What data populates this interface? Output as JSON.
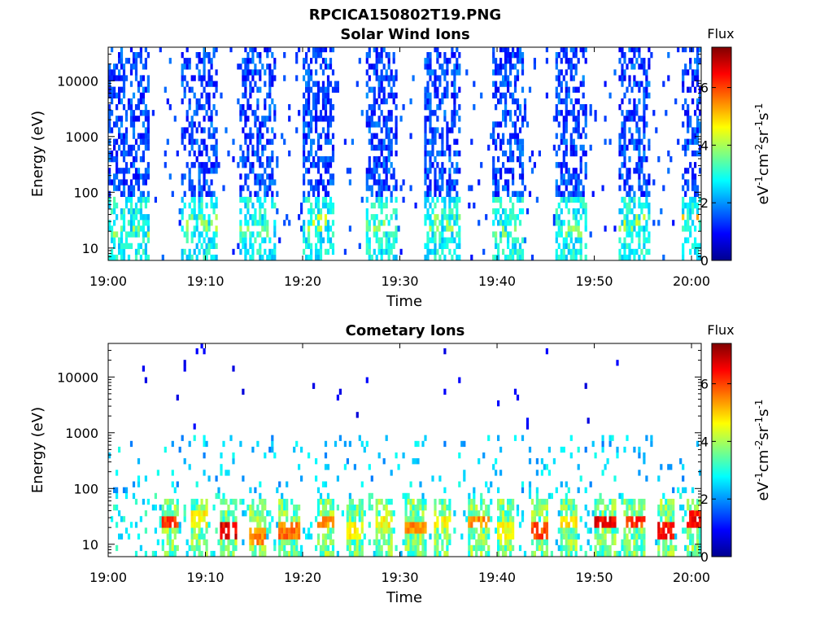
{
  "figure": {
    "title": "RPCICA150802T19.PNG"
  },
  "chart_data": [
    {
      "type": "heatmap",
      "title": "Solar Wind Ions",
      "xlabel": "Time",
      "ylabel": "Energy (eV)",
      "x_ticks": [
        "19:00",
        "19:10",
        "19:20",
        "19:30",
        "19:40",
        "19:50",
        "20:00"
      ],
      "xlim": [
        "19:00",
        "20:01"
      ],
      "y_scale": "log",
      "y_ticks": [
        10,
        100,
        1000,
        10000
      ],
      "y_tick_labels": [
        "10",
        "100",
        "1000",
        "10000"
      ],
      "ylim": [
        6,
        40000
      ],
      "colorbar": {
        "title": "Flux",
        "label": "eV-1cm-2sr-1s-1",
        "range": [
          0,
          7.4
        ],
        "ticks": [
          0,
          2,
          4,
          6
        ],
        "colormap": "jet"
      },
      "bursts": [
        {
          "start": "19:00.0",
          "end": "19:04.0",
          "peak_flux": 4.2,
          "peak_energy_eV": 20
        },
        {
          "start": "19:07.5",
          "end": "19:11.0",
          "peak_flux": 4.3,
          "peak_energy_eV": 28
        },
        {
          "start": "19:13.5",
          "end": "19:17.0",
          "peak_flux": 4.0,
          "peak_energy_eV": 20
        },
        {
          "start": "19:20.0",
          "end": "19:23.0",
          "peak_flux": 4.6,
          "peak_energy_eV": 28
        },
        {
          "start": "19:26.5",
          "end": "19:29.5",
          "peak_flux": 4.2,
          "peak_energy_eV": 25
        },
        {
          "start": "19:32.5",
          "end": "19:36.0",
          "peak_flux": 4.2,
          "peak_energy_eV": 28
        },
        {
          "start": "19:39.5",
          "end": "19:42.5",
          "peak_flux": 4.0,
          "peak_energy_eV": 20
        },
        {
          "start": "19:46.0",
          "end": "19:49.0",
          "peak_flux": 4.2,
          "peak_energy_eV": 20
        },
        {
          "start": "19:52.5",
          "end": "19:55.5",
          "peak_flux": 4.6,
          "peak_energy_eV": 28
        },
        {
          "start": "19:59.0",
          "end": "20:01.0",
          "peak_flux": 5.6,
          "peak_energy_eV": 30
        }
      ]
    },
    {
      "type": "heatmap",
      "title": "Cometary Ions",
      "xlabel": "Time",
      "ylabel": "Energy (eV)",
      "x_ticks": [
        "19:00",
        "19:10",
        "19:20",
        "19:30",
        "19:40",
        "19:50",
        "20:00"
      ],
      "xlim": [
        "19:00",
        "20:01"
      ],
      "y_scale": "log",
      "y_ticks": [
        10,
        100,
        1000,
        10000
      ],
      "y_tick_labels": [
        "10",
        "100",
        "1000",
        "10000"
      ],
      "ylim": [
        6,
        40000
      ],
      "colorbar": {
        "title": "Flux",
        "label": "eV-1cm-2sr-1s-1",
        "range": [
          0,
          7.4
        ],
        "ticks": [
          0,
          2,
          4,
          6
        ],
        "colormap": "jet"
      },
      "bursts": [
        {
          "start": "19:05.5",
          "end": "19:07.0",
          "peak_flux": 6.5,
          "peak_energy_eV": 25
        },
        {
          "start": "19:08.5",
          "end": "19:10.0",
          "peak_flux": 5.0,
          "peak_energy_eV": 30
        },
        {
          "start": "19:11.5",
          "end": "19:13.0",
          "peak_flux": 7.0,
          "peak_energy_eV": 16
        },
        {
          "start": "19:14.5",
          "end": "19:16.0",
          "peak_flux": 5.8,
          "peak_energy_eV": 14
        },
        {
          "start": "19:17.5",
          "end": "19:19.5",
          "peak_flux": 6.0,
          "peak_energy_eV": 16
        },
        {
          "start": "19:21.5",
          "end": "19:23.0",
          "peak_flux": 5.8,
          "peak_energy_eV": 25
        },
        {
          "start": "19:24.5",
          "end": "19:26.0",
          "peak_flux": 5.0,
          "peak_energy_eV": 16
        },
        {
          "start": "19:27.5",
          "end": "19:29.0",
          "peak_flux": 5.0,
          "peak_energy_eV": 25
        },
        {
          "start": "19:30.5",
          "end": "19:32.5",
          "peak_flux": 5.8,
          "peak_energy_eV": 20
        },
        {
          "start": "19:33.5",
          "end": "19:35.0",
          "peak_flux": 5.0,
          "peak_energy_eV": 25
        },
        {
          "start": "19:37.0",
          "end": "19:39.0",
          "peak_flux": 5.8,
          "peak_energy_eV": 25
        },
        {
          "start": "19:40.0",
          "end": "19:41.5",
          "peak_flux": 5.0,
          "peak_energy_eV": 16
        },
        {
          "start": "19:43.5",
          "end": "19:45.0",
          "peak_flux": 6.3,
          "peak_energy_eV": 16
        },
        {
          "start": "19:46.5",
          "end": "19:48.0",
          "peak_flux": 5.2,
          "peak_energy_eV": 25
        },
        {
          "start": "19:50.0",
          "end": "19:52.0",
          "peak_flux": 7.0,
          "peak_energy_eV": 25
        },
        {
          "start": "19:53.0",
          "end": "19:55.0",
          "peak_flux": 6.5,
          "peak_energy_eV": 25
        },
        {
          "start": "19:56.5",
          "end": "19:58.0",
          "peak_flux": 6.8,
          "peak_energy_eV": 16
        },
        {
          "start": "19:59.5",
          "end": "20:01.0",
          "peak_flux": 6.8,
          "peak_energy_eV": 30
        }
      ]
    }
  ]
}
